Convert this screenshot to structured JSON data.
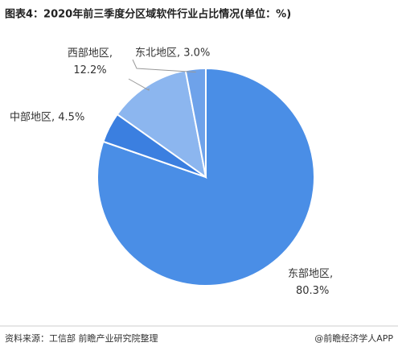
{
  "chart_data": {
    "type": "pie",
    "title": "图表4：2020年前三季度分区域软件行业占比情况(单位：%)",
    "values": [
      80.3,
      4.5,
      12.2,
      3.0
    ],
    "value_labels": [
      "东部地区, 80.3%",
      "中部地区, 4.5%",
      "西部地区, 12.2%",
      "东北地区, 3.0%"
    ],
    "colors": [
      "#4a8ee6",
      "#3b7fe0",
      "#8cb6ef",
      "#6ea2ea"
    ],
    "source": "资料来源：工信部 前瞻产业研究院整理",
    "credit": "@前瞻经济学人APP"
  }
}
